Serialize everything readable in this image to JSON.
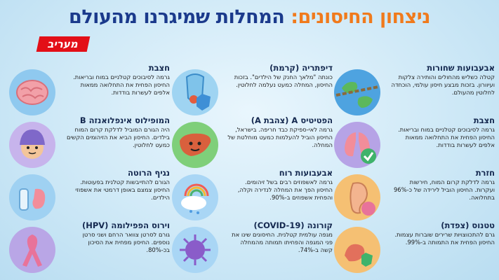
{
  "header": {
    "title_part1": "ניצחון החיסונים:",
    "title_part2": "המחלות שמיגרנו מהעולם",
    "logo": "מעריב"
  },
  "cards": [
    {
      "title": "אבעבועות שחורות",
      "text": "קטלה כשליש מהחולים והותירה צלקות ועיוורון. בזכות מבצע חיסון עולמי, הוכחדה לחלוטין מהעולם.",
      "icon": "earth-chains-icon"
    },
    {
      "title": "דיפתריה (קרמת)",
      "text": "כונתה \"מלאך החנק של הילדים\". בזכות החיסון, המחלה כמעט נעלמה לחלוטין.",
      "icon": "throat-shield-icon"
    },
    {
      "title": "חצבת",
      "text": "גרמה לסיבוכים קטלניים במוח ובריאות. החיסון הפחית את התחלואה ממאות אלפים לעשרות בודדות.",
      "icon": "brain-icon"
    },
    {
      "title": "חצבת",
      "text": "גרמה לסיבוכים קטלניים במוח ובריאות. החיסון הפחית את התחלואה ממאות אלפים לעשרות בודדות.",
      "icon": "lungs-check-icon"
    },
    {
      "title": "הפטיטיס A (צהבת A)",
      "text": "גרמה לאי-ספיקת כבד חריפה. בישראל, החיסון הוביל להעלמות כמעט מוחלטת של המחלה.",
      "icon": "liver-icon"
    },
    {
      "title": "המופילוס אינפלואנזה B",
      "text": "היה הגורם המוביל לדלקת קרום המוח בילדים. החיסון הביא את הזיהומים הקשים כמעט לחלוטין.",
      "icon": "child-helmet-icon"
    },
    {
      "title": "חזרת",
      "text": "גרמה לדלקת קרום המוח, חירשות ועקרות. החיסון הוביל לירידה של כ-96% בתחלואה.",
      "icon": "ear-icon"
    },
    {
      "title": "אבעבועות רוח",
      "text": "גרמה לאשפוזים רבים בשל זיהומים. החיסון הפך את המחלה לנדירה וקלה, והפחית אשפוזים ב-90%.",
      "icon": "cloud-rainbow-icon"
    },
    {
      "title": "נגיף הרוטה",
      "text": "הגורם להתייבשות קטלנית בפעוטות. החיסון צמצם באופן דרמטי את אשפוזי הילדים.",
      "icon": "bottle-stomach-icon"
    },
    {
      "title": "טטנוס (צפדת)",
      "text": "גרם להתכווצויות שרירים שוברות עצמות. החיסון הפחית את התמותה ב-99%.",
      "icon": "muscle-shield-icon"
    },
    {
      "title": "קורונה (COVID-19)",
      "text": "מגפה עולמית קטלנית. החיסונים שינו את פני המגפה והפחיתו תמותה מהמחלה קשה ב-74%.",
      "icon": "virus-icon"
    },
    {
      "title": "וירוס הפפילומה (HPV)",
      "text": "גורם לסרטן צוואר הרחם ושני סרטן נוספים. החיסון מפחית את הסיכון בכ-80%.",
      "icon": "ribbon-icon"
    }
  ]
}
